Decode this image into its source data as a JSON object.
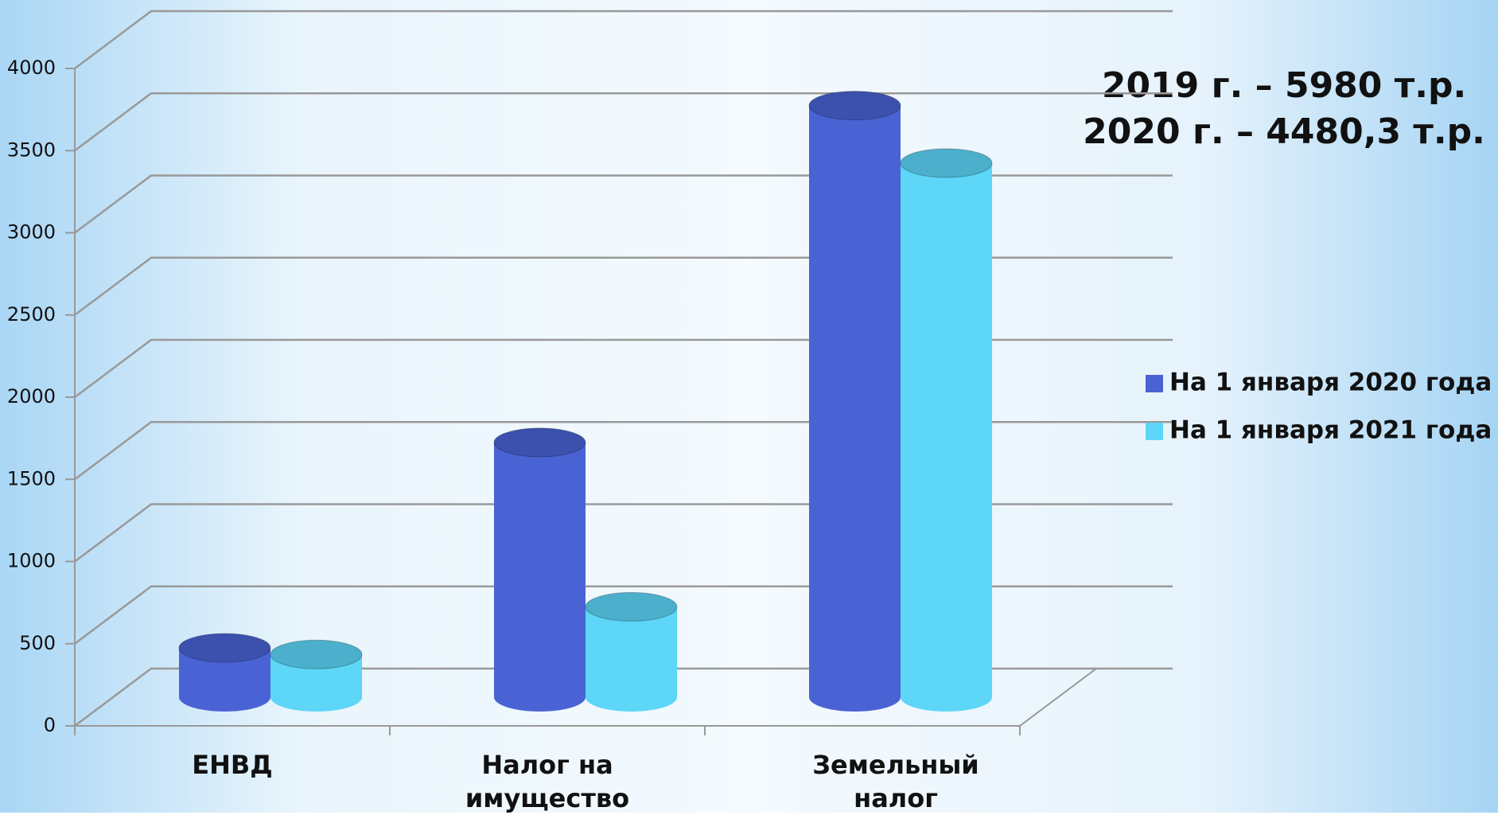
{
  "chart_data": {
    "type": "bar3d",
    "categories": [
      "ЕНВД",
      "Налог на имущество",
      "Земельный налог"
    ],
    "series": [
      {
        "name": "На 1 января 2020 года",
        "color": "#4a63d4",
        "values": [
          300,
          1550,
          3600
        ]
      },
      {
        "name": "На 1 января 2021 года",
        "color": "#5dd6f8",
        "values": [
          260,
          550,
          3250
        ]
      }
    ],
    "ylim": [
      0,
      4000
    ],
    "yticks": [
      0,
      500,
      1000,
      1500,
      2000,
      2500,
      3000,
      3500,
      4000
    ],
    "grid": true,
    "legend": "right",
    "annotations": [
      "2019 г. – 5980 т.р.",
      "2020 г. – 4480,3 т.р."
    ]
  }
}
